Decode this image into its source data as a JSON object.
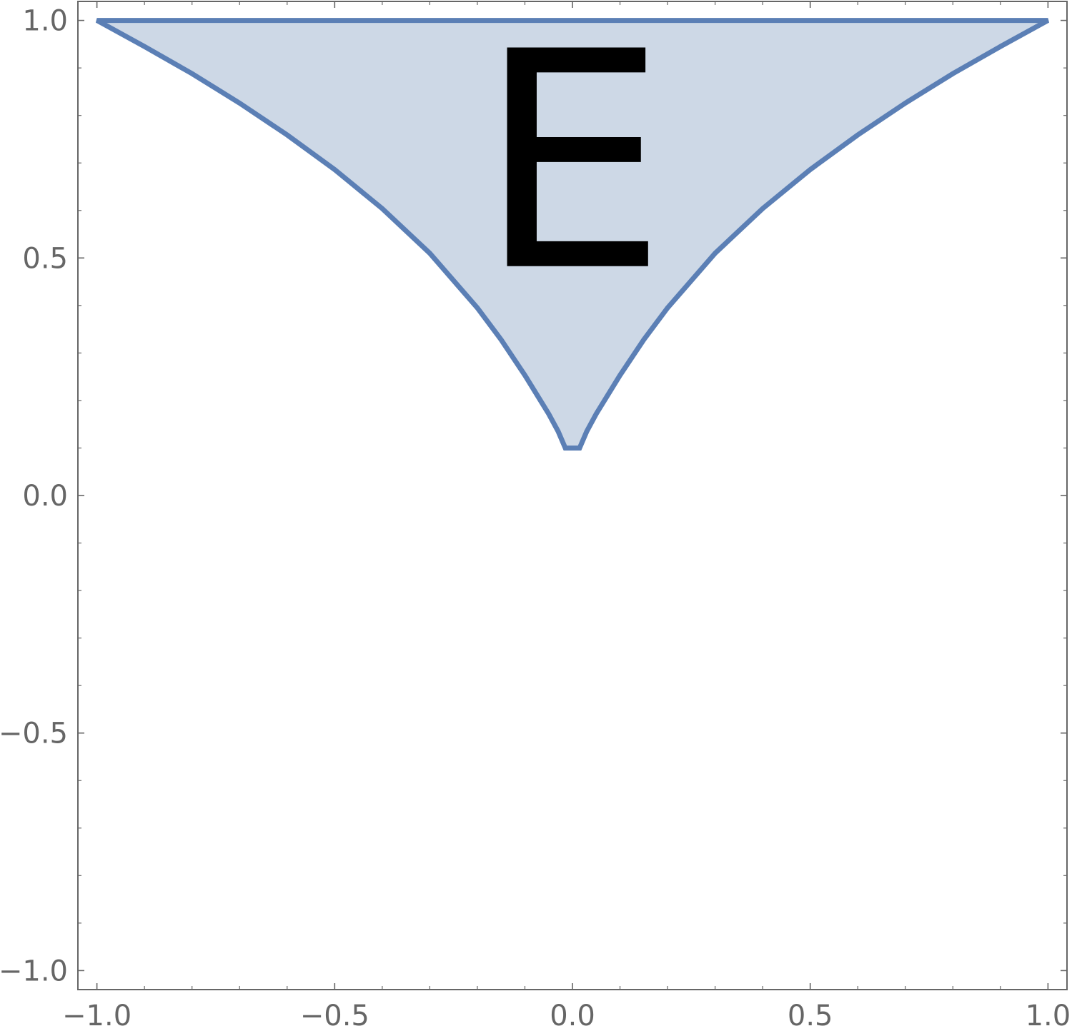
{
  "chart_data": {
    "type": "area",
    "x_ticks": [
      "−1.0",
      "−0.5",
      "0.0",
      "0.5",
      "1.0"
    ],
    "y_ticks": [
      "−1.0",
      "−0.5",
      "0.0",
      "0.5",
      "1.0"
    ],
    "xlim": [
      -1.04,
      1.04
    ],
    "ylim": [
      -1.04,
      1.04
    ],
    "grid": false,
    "colors": {
      "edge": "#5b7fb5",
      "fill": "#cdd8e6",
      "frame": "#666666"
    },
    "region": {
      "label": "E",
      "label_position": [
        0.0,
        0.7
      ],
      "boundary": [
        [
          -1.0,
          1.0
        ],
        [
          -0.9,
          0.945
        ],
        [
          -0.8,
          0.888
        ],
        [
          -0.7,
          0.826
        ],
        [
          -0.6,
          0.759
        ],
        [
          -0.5,
          0.686
        ],
        [
          -0.4,
          0.604
        ],
        [
          -0.3,
          0.51
        ],
        [
          -0.2,
          0.395
        ],
        [
          -0.15,
          0.328
        ],
        [
          -0.1,
          0.253
        ],
        [
          -0.05,
          0.172
        ],
        [
          -0.03,
          0.135
        ],
        [
          -0.015,
          0.1
        ],
        [
          0.015,
          0.1
        ],
        [
          0.03,
          0.135
        ],
        [
          0.05,
          0.172
        ],
        [
          0.1,
          0.253
        ],
        [
          0.15,
          0.328
        ],
        [
          0.2,
          0.395
        ],
        [
          0.3,
          0.51
        ],
        [
          0.4,
          0.604
        ],
        [
          0.5,
          0.686
        ],
        [
          0.6,
          0.759
        ],
        [
          0.7,
          0.826
        ],
        [
          0.8,
          0.888
        ],
        [
          0.9,
          0.945
        ],
        [
          1.0,
          1.0
        ]
      ]
    }
  }
}
